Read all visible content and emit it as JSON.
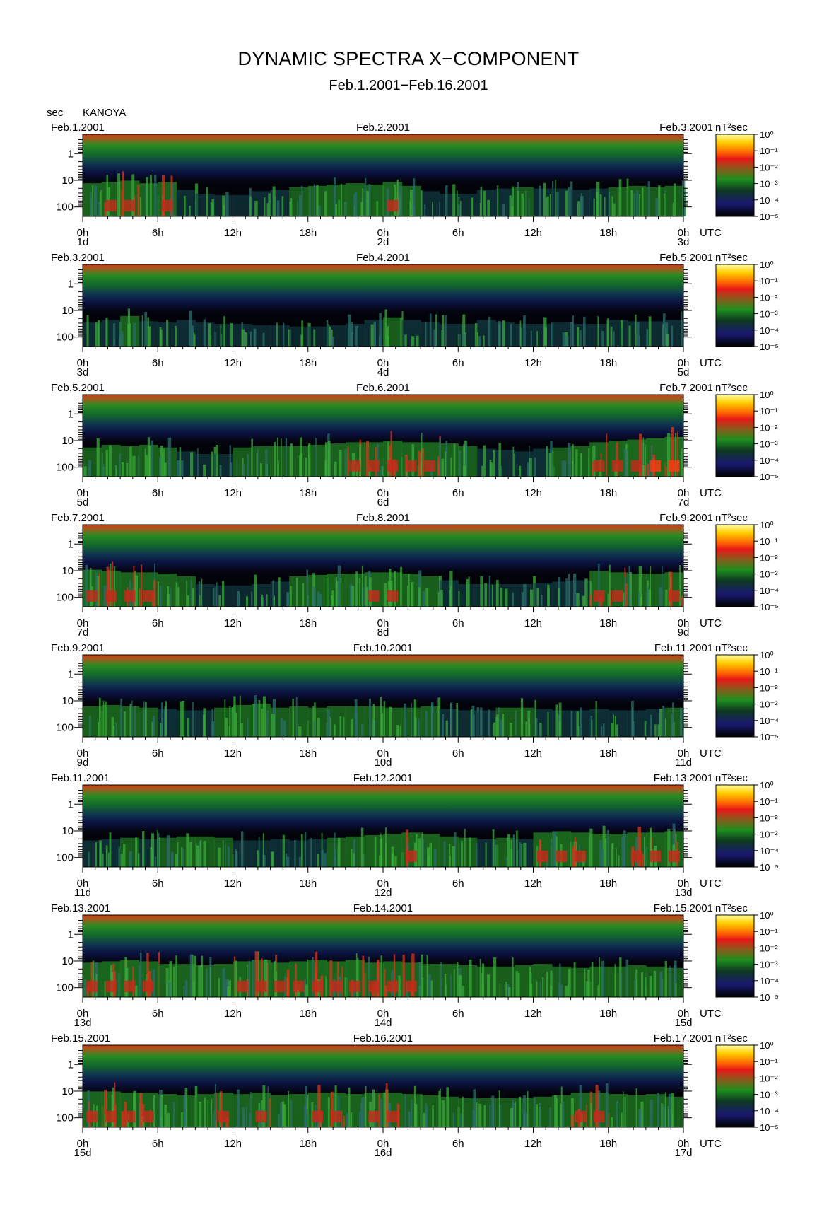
{
  "title": "DYNAMIC SPECTRA X−COMPONENT",
  "subtitle": "Feb.1.2001−Feb.16.2001",
  "ylabel": "sec",
  "station": "KANOYA",
  "unit_label": "nT²sec",
  "utc_label": "UTC",
  "chart_data": {
    "type": "heatmap",
    "title": "DYNAMIC SPECTRA X−COMPONENT",
    "subtitle": "Feb.1.2001−Feb.16.2001",
    "station": "KANOYA",
    "y_axis": {
      "label": "sec",
      "scale": "log",
      "inverted": true,
      "ticks": [
        "1",
        "10",
        "100"
      ],
      "tick_values": [
        1,
        10,
        100
      ]
    },
    "x_tick_labels": [
      "0h",
      "6h",
      "12h",
      "18h",
      "0h",
      "6h",
      "12h",
      "18h",
      "0h"
    ],
    "x_tick_hours": [
      0,
      6,
      12,
      18,
      24,
      30,
      36,
      42,
      48
    ],
    "x_unit": "UTC",
    "colorbar": {
      "label": "nT²sec",
      "scale": "log",
      "ticks": [
        "10⁰",
        "10⁻¹",
        "10⁻²",
        "10⁻³",
        "10⁻⁴",
        "10⁻⁵"
      ],
      "colors": [
        "#ffffa0",
        "#ffcc00",
        "#ff7700",
        "#e81818",
        "#8a5a1a",
        "#1f8f1f",
        "#0d3a20",
        "#1a1a70",
        "#000000"
      ]
    },
    "panels": [
      {
        "date_left": "Feb.1.2001",
        "date_mid": "Feb.2.2001",
        "date_right": "Feb.3.2001",
        "day_labels": [
          "1d",
          "2d",
          "3d"
        ],
        "activity": [
          0.7,
          0.75,
          0.8,
          0.7,
          0.75,
          0.45,
          0.3,
          0.25,
          0.25,
          0.4,
          0.45,
          0.55,
          0.6,
          0.65,
          0.7,
          0.65,
          0.75,
          0.6,
          0.4,
          0.3,
          0.3,
          0.45,
          0.5,
          0.55,
          0.5,
          0.5,
          0.45,
          0.5,
          0.55,
          0.6,
          0.55,
          0.6
        ]
      },
      {
        "date_left": "Feb.3.2001",
        "date_mid": "Feb.4.2001",
        "date_right": "Feb.5.2001",
        "day_labels": [
          "3d",
          "4d",
          "5d"
        ],
        "activity": [
          0.35,
          0.45,
          0.6,
          0.4,
          0.35,
          0.45,
          0.35,
          0.3,
          0.3,
          0.25,
          0.25,
          0.2,
          0.2,
          0.25,
          0.3,
          0.45,
          0.55,
          0.45,
          0.35,
          0.3,
          0.3,
          0.45,
          0.35,
          0.3,
          0.3,
          0.35,
          0.3,
          0.3,
          0.45,
          0.4,
          0.4,
          0.45
        ]
      },
      {
        "date_left": "Feb.5.2001",
        "date_mid": "Feb.6.2001",
        "date_right": "Feb.7.2001",
        "day_labels": [
          "5d",
          "6d",
          "7d"
        ],
        "activity": [
          0.55,
          0.65,
          0.6,
          0.65,
          0.55,
          0.4,
          0.3,
          0.3,
          0.55,
          0.6,
          0.6,
          0.6,
          0.65,
          0.7,
          0.75,
          0.75,
          0.8,
          0.75,
          0.75,
          0.7,
          0.6,
          0.5,
          0.45,
          0.4,
          0.5,
          0.55,
          0.6,
          0.75,
          0.8,
          0.85,
          0.9,
          0.95
        ]
      },
      {
        "date_left": "Feb.7.2001",
        "date_mid": "Feb.8.2001",
        "date_right": "Feb.9.2001",
        "day_labels": [
          "7d",
          "8d",
          "9d"
        ],
        "activity": [
          0.85,
          0.8,
          0.75,
          0.75,
          0.7,
          0.6,
          0.3,
          0.25,
          0.25,
          0.3,
          0.4,
          0.6,
          0.65,
          0.7,
          0.7,
          0.75,
          0.75,
          0.7,
          0.6,
          0.45,
          0.3,
          0.3,
          0.3,
          0.3,
          0.35,
          0.4,
          0.45,
          0.8,
          0.75,
          0.7,
          0.7,
          0.75
        ]
      },
      {
        "date_left": "Feb.9.2001",
        "date_mid": "Feb.10.2001",
        "date_right": "Feb.11.2001",
        "day_labels": [
          "9d",
          "10d",
          "11d"
        ],
        "activity": [
          0.6,
          0.65,
          0.6,
          0.55,
          0.5,
          0.45,
          0.45,
          0.55,
          0.65,
          0.7,
          0.55,
          0.6,
          0.55,
          0.6,
          0.6,
          0.6,
          0.55,
          0.55,
          0.6,
          0.5,
          0.45,
          0.45,
          0.55,
          0.55,
          0.5,
          0.45,
          0.45,
          0.5,
          0.45,
          0.45,
          0.5,
          0.55
        ]
      },
      {
        "date_left": "Feb.11.2001",
        "date_mid": "Feb.12.2001",
        "date_right": "Feb.13.2001",
        "day_labels": [
          "11d",
          "12d",
          "13d"
        ],
        "activity": [
          0.45,
          0.5,
          0.55,
          0.5,
          0.55,
          0.6,
          0.6,
          0.55,
          0.45,
          0.45,
          0.5,
          0.45,
          0.5,
          0.55,
          0.6,
          0.65,
          0.7,
          0.75,
          0.7,
          0.6,
          0.55,
          0.5,
          0.55,
          0.5,
          0.75,
          0.8,
          0.75,
          0.7,
          0.7,
          0.75,
          0.75,
          0.8
        ]
      },
      {
        "date_left": "Feb.13.2001",
        "date_mid": "Feb.14.2001",
        "date_right": "Feb.15.2001",
        "day_labels": [
          "13d",
          "14d",
          "15d"
        ],
        "activity": [
          0.75,
          0.8,
          0.85,
          0.8,
          0.7,
          0.7,
          0.65,
          0.7,
          0.8,
          0.85,
          0.75,
          0.8,
          0.85,
          0.8,
          0.85,
          0.75,
          0.8,
          0.75,
          0.7,
          0.7,
          0.65,
          0.6,
          0.6,
          0.65,
          0.7,
          0.6,
          0.55,
          0.6,
          0.6,
          0.65,
          0.6,
          0.55
        ]
      },
      {
        "date_left": "Feb.15.2001",
        "date_mid": "Feb.16.2001",
        "date_right": "Feb.17.2001",
        "day_labels": [
          "15d",
          "16d",
          "17d"
        ],
        "activity": [
          0.8,
          0.8,
          0.75,
          0.75,
          0.7,
          0.65,
          0.7,
          0.75,
          0.7,
          0.75,
          0.65,
          0.7,
          0.75,
          0.75,
          0.7,
          0.75,
          0.75,
          0.7,
          0.65,
          0.6,
          0.55,
          0.55,
          0.55,
          0.55,
          0.6,
          0.65,
          0.75,
          0.75,
          0.7,
          0.65,
          0.7,
          0.6
        ]
      }
    ]
  }
}
